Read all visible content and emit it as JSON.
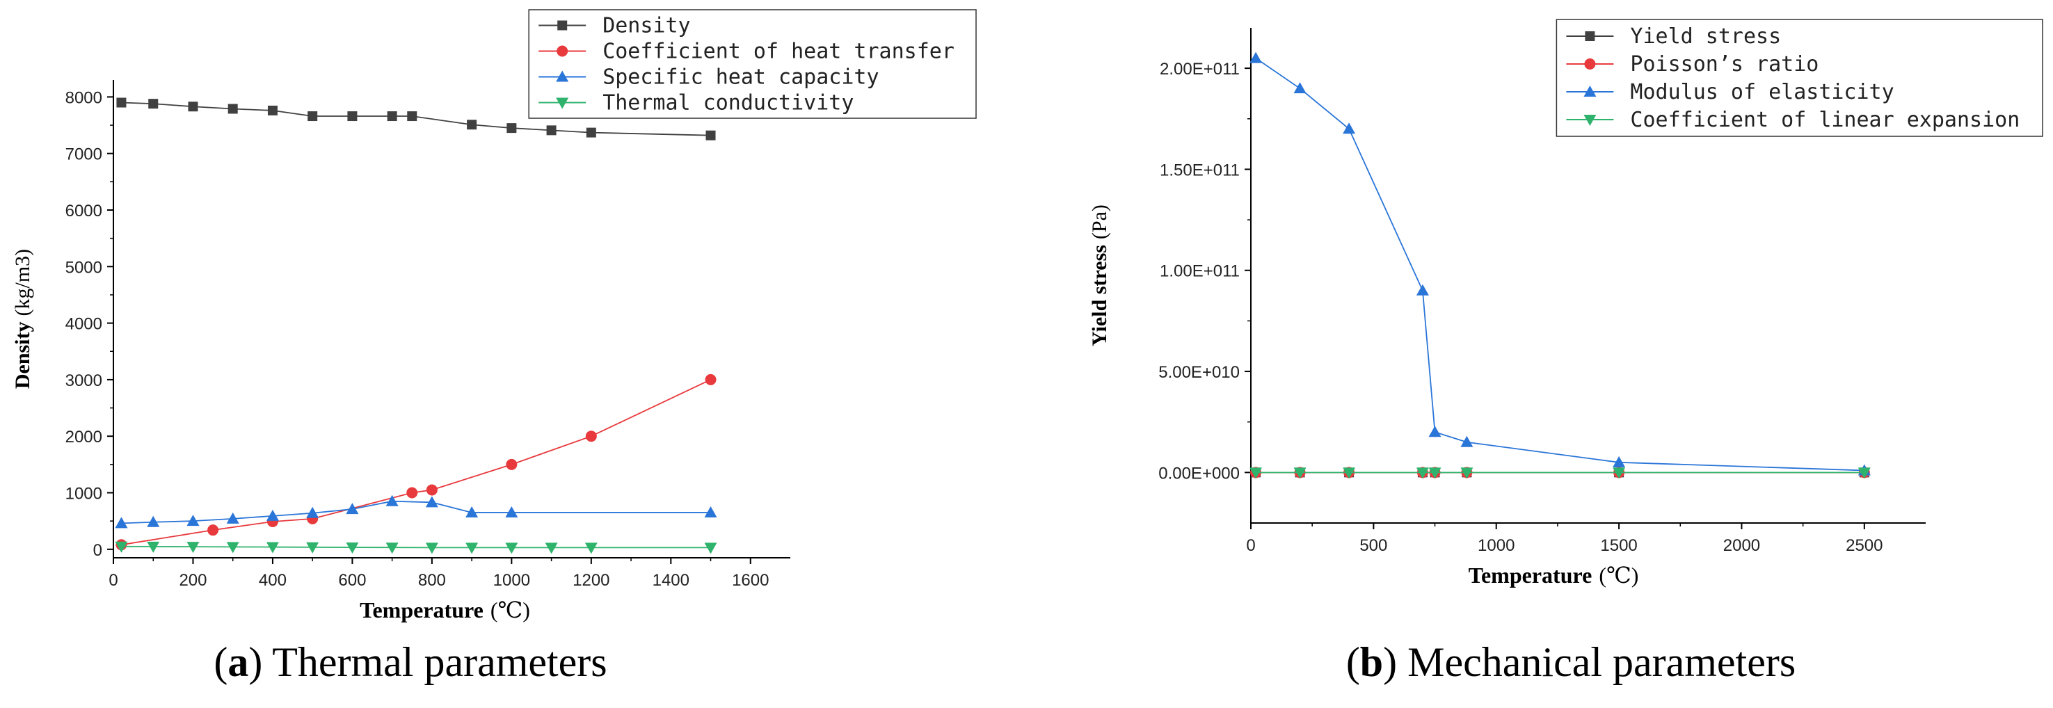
{
  "chart_data": [
    {
      "type": "line",
      "panel_letter": "a",
      "caption_text": " Thermal parameters",
      "xlabel": "Temperature",
      "xlabel_unit": "(℃)",
      "ylabel": "Density",
      "ylabel_unit": "(kg/m3)",
      "xlim": [
        0,
        1700
      ],
      "ylim": [
        -150,
        8300
      ],
      "xticks": [
        0,
        200,
        400,
        600,
        800,
        1000,
        1200,
        1400,
        1600
      ],
      "xtick_labels": [
        "0",
        "200",
        "400",
        "600",
        "800",
        "1000",
        "1200",
        "1400",
        "1600"
      ],
      "yticks": [
        0,
        1000,
        2000,
        3000,
        4000,
        5000,
        6000,
        7000,
        8000
      ],
      "ytick_labels": [
        "0",
        "1000",
        "2000",
        "3000",
        "4000",
        "5000",
        "6000",
        "7000",
        "8000"
      ],
      "grid": false,
      "legend_position": "top-right",
      "series": [
        {
          "name": "Density",
          "color": "#404040",
          "marker": "square",
          "x": [
            20,
            100,
            200,
            300,
            400,
            500,
            600,
            700,
            750,
            900,
            1000,
            1100,
            1200,
            1500
          ],
          "y": [
            7900,
            7880,
            7830,
            7790,
            7760,
            7660,
            7660,
            7660,
            7660,
            7510,
            7450,
            7410,
            7370,
            7320
          ]
        },
        {
          "name": "Coefficient of heat transfer",
          "color": "#e8393d",
          "marker": "circle",
          "x": [
            20,
            250,
            400,
            500,
            750,
            800,
            1000,
            1200,
            1500
          ],
          "y": [
            80,
            340,
            490,
            540,
            1000,
            1050,
            1500,
            2000,
            3000
          ]
        },
        {
          "name": "Specific heat capacity",
          "color": "#2a75d8",
          "marker": "triangle-up",
          "x": [
            20,
            100,
            200,
            300,
            400,
            500,
            600,
            700,
            800,
            900,
            1000,
            1500
          ],
          "y": [
            460,
            480,
            500,
            540,
            590,
            640,
            710,
            850,
            830,
            650,
            650,
            650
          ]
        },
        {
          "name": "Thermal conductivity",
          "color": "#2fb36c",
          "marker": "triangle-down",
          "x": [
            20,
            100,
            200,
            300,
            400,
            500,
            600,
            700,
            800,
            900,
            1000,
            1100,
            1200,
            1500
          ],
          "y": [
            50,
            48,
            45,
            42,
            40,
            37,
            34,
            32,
            30,
            30,
            30,
            30,
            30,
            30
          ]
        }
      ]
    },
    {
      "type": "line",
      "panel_letter": "b",
      "caption_text": " Mechanical parameters",
      "xlabel": "Temperature",
      "xlabel_unit": "(℃)",
      "ylabel": "Yield stress",
      "ylabel_unit": "(Pa)",
      "xlim": [
        0,
        2750
      ],
      "ylim": [
        -25000000000,
        220000000000
      ],
      "xticks": [
        0,
        500,
        1000,
        1500,
        2000,
        2500
      ],
      "xtick_labels": [
        "0",
        "500",
        "1000",
        "1500",
        "2000",
        "2500"
      ],
      "yticks": [
        0,
        50000000000,
        100000000000,
        150000000000,
        200000000000
      ],
      "ytick_labels": [
        "0.00E+000",
        "5.00E+010",
        "1.00E+011",
        "1.50E+011",
        "2.00E+011"
      ],
      "grid": false,
      "legend_position": "top-right",
      "series": [
        {
          "name": "Yield stress",
          "color": "#404040",
          "marker": "square",
          "x": [
            20,
            200,
            400,
            700,
            750,
            880,
            1500,
            2500
          ],
          "y": [
            0,
            0,
            0,
            0,
            0,
            0,
            0,
            0
          ]
        },
        {
          "name": "Poisson’s ratio",
          "color": "#e8393d",
          "marker": "circle",
          "x": [
            20,
            200,
            400,
            700,
            750,
            880,
            1500,
            2500
          ],
          "y": [
            0,
            0,
            0,
            0,
            0,
            0,
            0,
            0
          ]
        },
        {
          "name": "Modulus of elasticity",
          "color": "#2a75d8",
          "marker": "triangle-up",
          "x": [
            20,
            200,
            400,
            700,
            750,
            880,
            1500,
            2500
          ],
          "y": [
            205000000000,
            190000000000,
            170000000000,
            90000000000,
            20000000000,
            15000000000,
            5000000000,
            1000000000
          ]
        },
        {
          "name": "Coefficient of linear expansion",
          "color": "#2fb36c",
          "marker": "triangle-down",
          "x": [
            20,
            200,
            400,
            700,
            750,
            880,
            1500,
            2500
          ],
          "y": [
            0,
            0,
            0,
            0,
            0,
            0,
            0,
            0
          ]
        }
      ]
    }
  ]
}
